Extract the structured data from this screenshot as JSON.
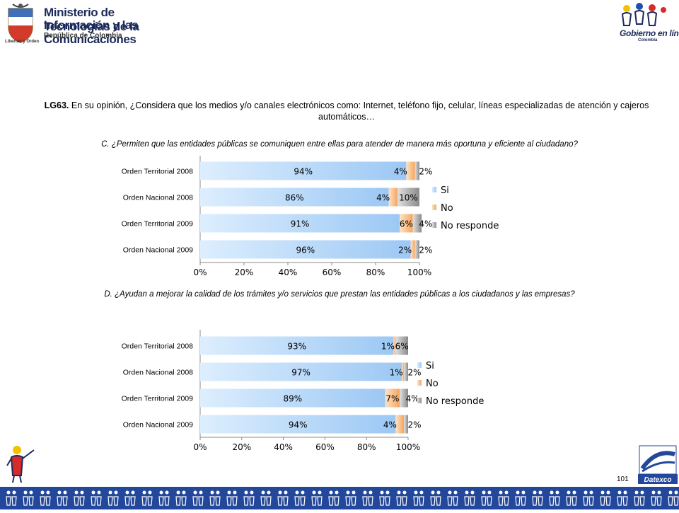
{
  "header": {
    "ministry_line1": "Ministerio de Tecnologías de la",
    "ministry_line2": "Información y las Comunicaciones",
    "ministry_line3": "República de Colombia",
    "seal_caption": "Libertad y Orden",
    "gel_title": "Gobierno en línea",
    "gel_country": "Colombia"
  },
  "question": {
    "code": "LG63.",
    "text": " En su opinión,  ¿Considera que los medios y/o canales electrónicos como: Internet, teléfono fijo, celular, líneas especializadas de atención y cajeros automáticos…"
  },
  "subquestions": {
    "c": "C. ¿Permiten que las entidades públicas se comuniquen entre ellas para atender de manera más oportuna y eficiente al ciudadano?",
    "d": "D. ¿Ayudan a mejorar la calidad de los trámites y/o servicios que prestan  las entidades públicas a los ciudadanos y las empresas?"
  },
  "colors": {
    "si": "#9cc8f4",
    "si_light": "#ddeefe",
    "no": "#f6a55d",
    "no_light": "#fde3c8",
    "nr": "#8a8a8a",
    "nr_light": "#e0e0e0",
    "footer": "#23479a"
  },
  "chart_data": [
    {
      "type": "bar",
      "orientation": "horizontal",
      "stacked": true,
      "categories": [
        "Orden Territorial 2008",
        "Orden Nacional 2008",
        "Orden Territorial 2009",
        "Orden Nacional 2009"
      ],
      "series": [
        {
          "name": "Si",
          "values": [
            94,
            86,
            91,
            96
          ],
          "labels": [
            "94%",
            "86%",
            "91%",
            "96%"
          ]
        },
        {
          "name": "No",
          "values": [
            4,
            4,
            6,
            2
          ],
          "labels": [
            "4%",
            "4%",
            "6%",
            "2%"
          ]
        },
        {
          "name": "No responde",
          "values": [
            2,
            10,
            4,
            2
          ],
          "labels": [
            "2%",
            "10%",
            "4%",
            "2%"
          ]
        }
      ],
      "xticks": [
        "0%",
        "20%",
        "40%",
        "60%",
        "80%",
        "100%"
      ],
      "xlim": [
        0,
        100
      ],
      "legend": "right"
    },
    {
      "type": "bar",
      "orientation": "horizontal",
      "stacked": true,
      "categories": [
        "Orden Territorial 2008",
        "Orden Nacional 2008",
        "Orden Territorial 2009",
        "Orden Nacional 2009"
      ],
      "series": [
        {
          "name": "Si",
          "values": [
            93,
            97,
            89,
            94
          ],
          "labels": [
            "93%",
            "97%",
            "89%",
            "94%"
          ]
        },
        {
          "name": "No",
          "values": [
            1,
            1,
            7,
            4
          ],
          "labels": [
            "1%",
            "1%",
            "7%",
            "4%"
          ]
        },
        {
          "name": "No responde",
          "values": [
            6,
            2,
            4,
            2
          ],
          "labels": [
            "6%",
            "2%",
            "4%",
            "2%"
          ]
        }
      ],
      "xticks": [
        "0%",
        "20%",
        "40%",
        "60%",
        "80%",
        "100%"
      ],
      "xlim": [
        0,
        100
      ],
      "legend": "right"
    }
  ],
  "page_number": "101",
  "datexco_label": "Datexco"
}
